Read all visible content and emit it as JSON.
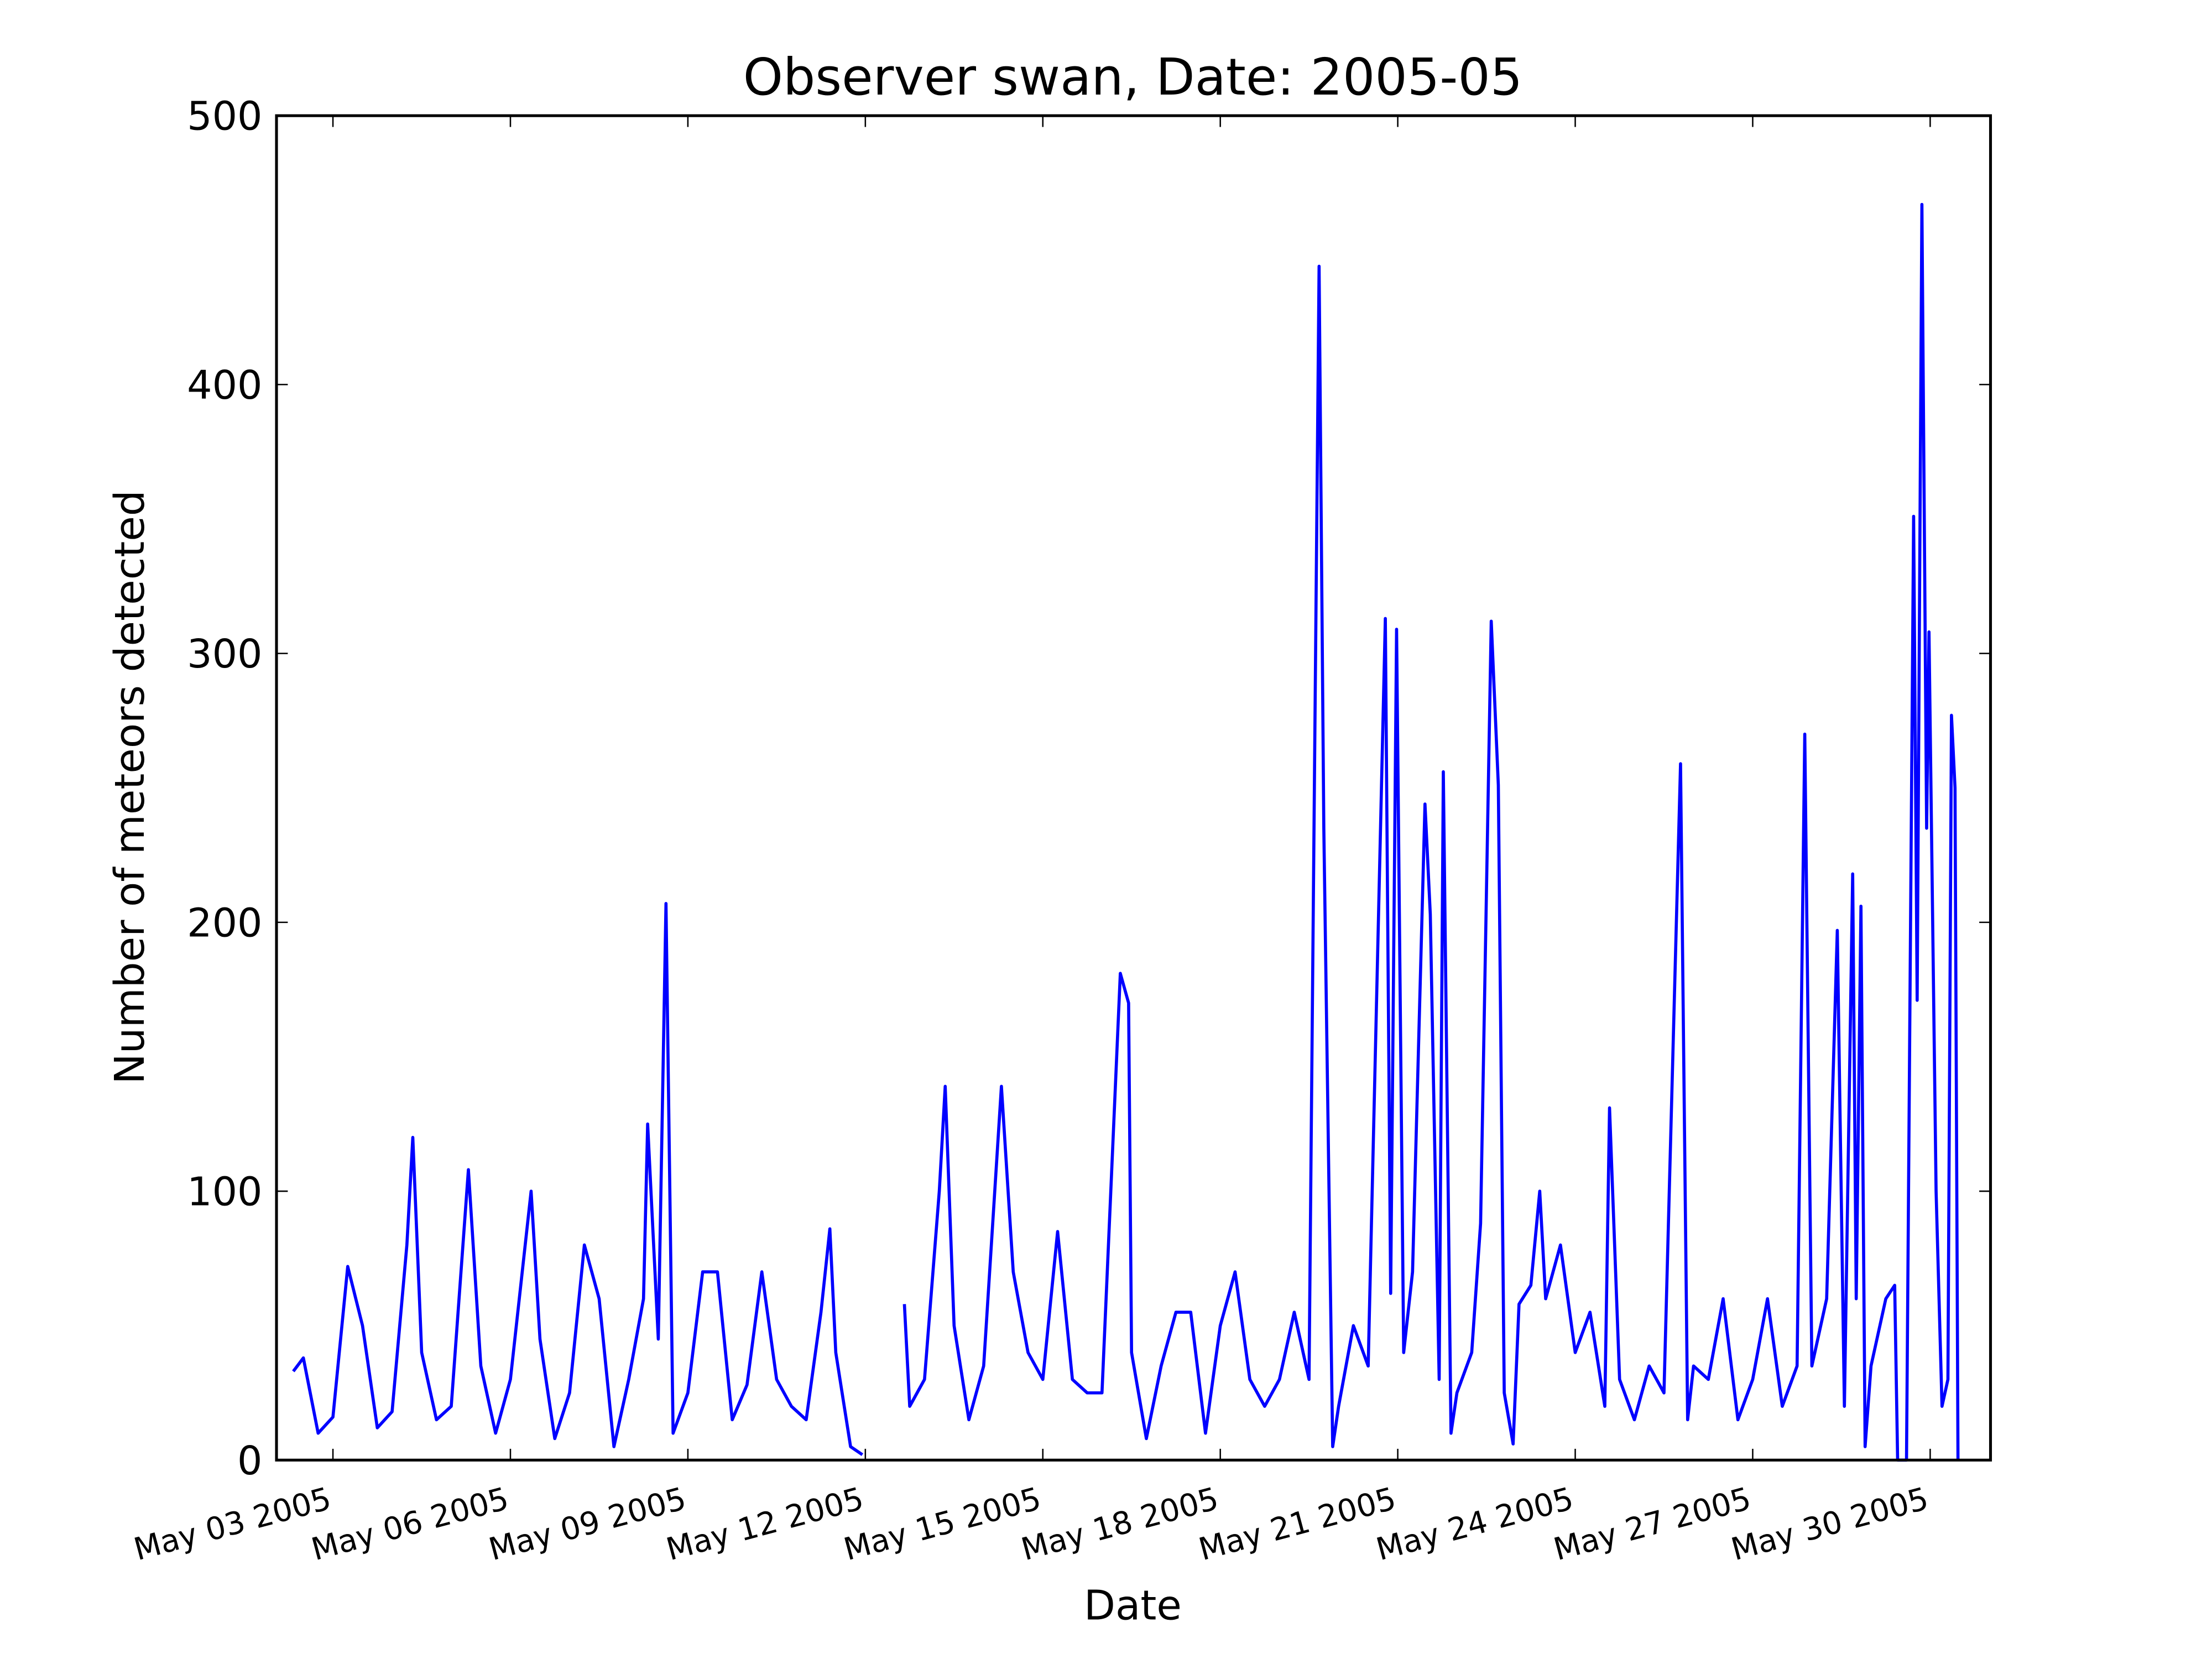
{
  "chart_data": {
    "type": "line",
    "title": "Observer swan, Date: 2005-05",
    "x_label": "Date",
    "y_label": "Number of meteors detected",
    "color": "#0000ff",
    "x": [
      2.33,
      2.5,
      2.75,
      3.0,
      3.25,
      3.5,
      3.75,
      4.0,
      4.25,
      4.35,
      4.5,
      4.75,
      5.0,
      5.29,
      5.5,
      5.75,
      6.0,
      6.25,
      6.35,
      6.5,
      6.75,
      7.0,
      7.25,
      7.5,
      7.75,
      8.0,
      8.25,
      8.32,
      8.5,
      8.63,
      8.75,
      9.0,
      9.25,
      9.5,
      9.75,
      10.0,
      10.25,
      10.5,
      10.75,
      11.0,
      11.25,
      11.4,
      11.5,
      11.75,
      11.95,
      12.2,
      12.66,
      12.75,
      13.0,
      13.25,
      13.35,
      13.5,
      13.75,
      14.0,
      14.3,
      14.5,
      14.75,
      15.0,
      15.25,
      15.5,
      15.75,
      16.0,
      16.31,
      16.45,
      16.5,
      16.75,
      17.0,
      17.25,
      17.5,
      17.75,
      18.0,
      18.25,
      18.5,
      18.75,
      19.0,
      19.25,
      19.5,
      19.67,
      19.75,
      19.9,
      20.0,
      20.25,
      20.5,
      20.79,
      20.88,
      20.98,
      21.1,
      21.25,
      21.46,
      21.55,
      21.7,
      21.77,
      21.9,
      22.0,
      22.25,
      22.4,
      22.58,
      22.7,
      22.8,
      22.95,
      23.05,
      23.25,
      23.4,
      23.5,
      23.75,
      24.0,
      24.25,
      24.5,
      24.58,
      24.75,
      25.0,
      25.25,
      25.5,
      25.78,
      25.9,
      26.0,
      26.25,
      26.5,
      26.75,
      27.0,
      27.25,
      27.5,
      27.75,
      27.88,
      28.0,
      28.25,
      28.43,
      28.55,
      28.69,
      28.75,
      28.83,
      28.9,
      29.0,
      29.25,
      29.4,
      29.45,
      29.6,
      29.72,
      29.78,
      29.86,
      29.94,
      29.98,
      30.1,
      30.2,
      30.3,
      30.36,
      30.42,
      30.47
    ],
    "values": [
      33,
      38,
      10,
      16,
      72,
      50,
      12,
      18,
      80,
      120,
      40,
      15,
      20,
      108,
      35,
      10,
      30,
      80,
      100,
      45,
      8,
      25,
      80,
      60,
      5,
      30,
      60,
      125,
      45,
      207,
      10,
      25,
      70,
      70,
      15,
      28,
      70,
      30,
      20,
      15,
      55,
      86,
      40,
      5,
      2,
      null,
      58,
      20,
      30,
      100,
      139,
      50,
      15,
      35,
      139,
      70,
      40,
      30,
      85,
      30,
      25,
      25,
      181,
      170,
      40,
      8,
      35,
      55,
      55,
      10,
      50,
      70,
      30,
      20,
      30,
      55,
      30,
      444,
      235,
      5,
      20,
      50,
      35,
      313,
      62,
      309,
      40,
      70,
      244,
      203,
      30,
      256,
      10,
      25,
      40,
      88,
      312,
      251,
      25,
      6,
      58,
      65,
      100,
      60,
      80,
      40,
      55,
      20,
      131,
      30,
      15,
      35,
      25,
      259,
      15,
      35,
      30,
      60,
      15,
      30,
      60,
      20,
      35,
      270,
      35,
      60,
      197,
      20,
      218,
      60,
      206,
      5,
      35,
      60,
      65,
      0,
      0,
      351,
      171,
      467,
      235,
      308,
      100,
      20,
      30,
      277,
      250,
      0
    ],
    "xlim": [
      2.046,
      31.02
    ],
    "xticks": [
      {
        "value": 3,
        "label": "May 03 2005"
      },
      {
        "value": 6,
        "label": "May 06 2005"
      },
      {
        "value": 9,
        "label": "May 09 2005"
      },
      {
        "value": 12,
        "label": "May 12 2005"
      },
      {
        "value": 15,
        "label": "May 15 2005"
      },
      {
        "value": 18,
        "label": "May 18 2005"
      },
      {
        "value": 21,
        "label": "May 21 2005"
      },
      {
        "value": 24,
        "label": "May 24 2005"
      },
      {
        "value": 27,
        "label": "May 27 2005"
      },
      {
        "value": 30,
        "label": "May 30 2005"
      }
    ],
    "ylim": [
      0,
      500
    ],
    "yticks": [
      0,
      100,
      200,
      300,
      400,
      500
    ],
    "grid": false
  }
}
